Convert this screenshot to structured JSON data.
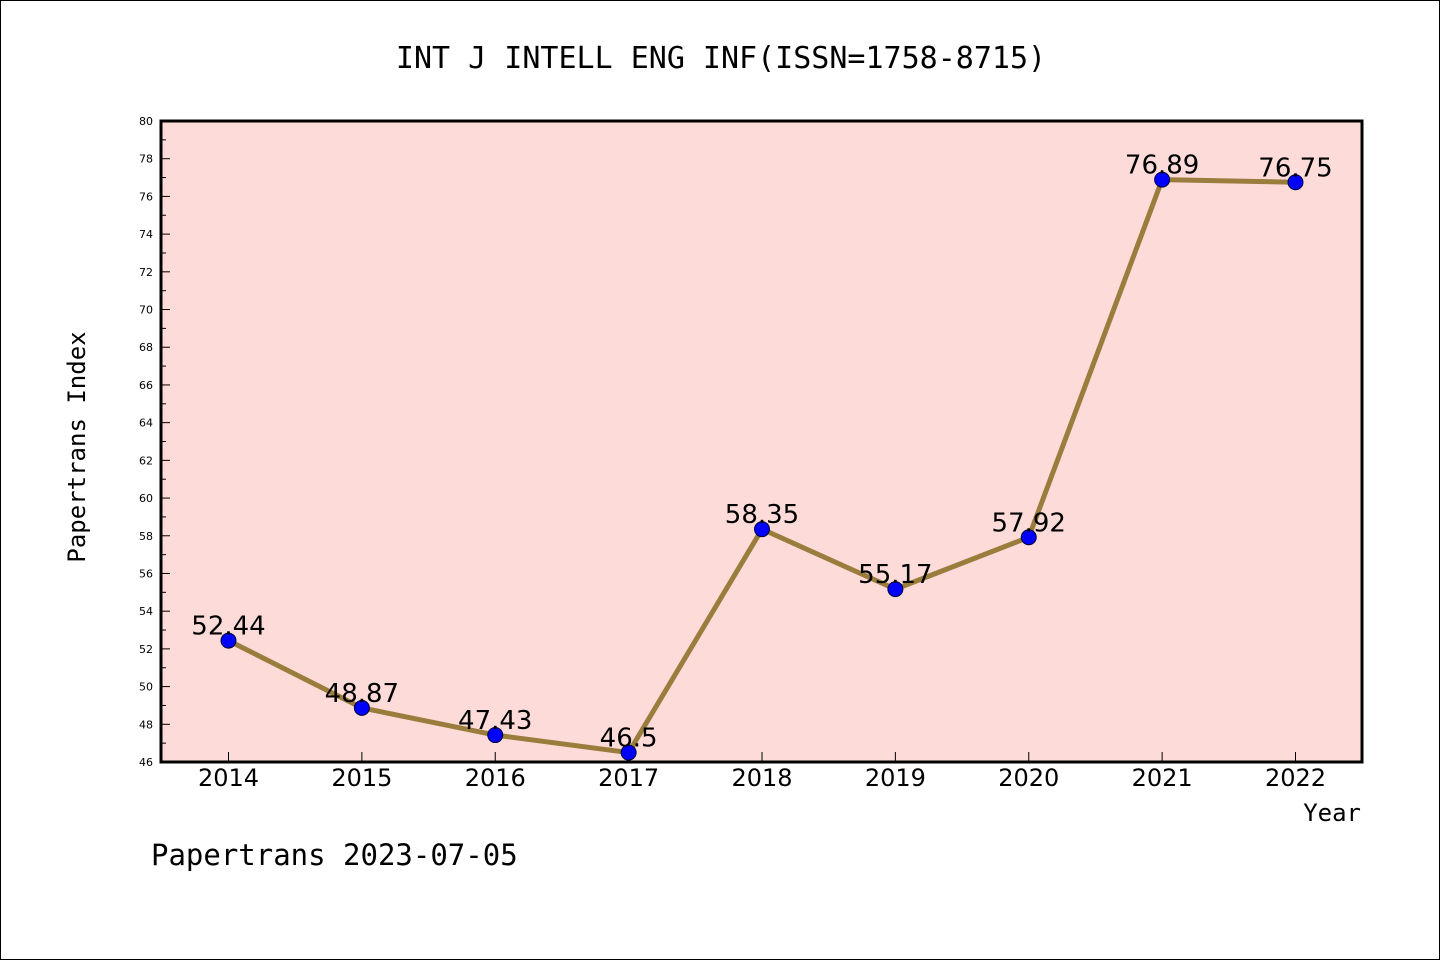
{
  "footer": "Papertrans 2023-07-05",
  "colors": {
    "plot_background": "#fddbd9",
    "line": "#9a7d3d",
    "marker": "#0000ff",
    "marker_edge": "#000033"
  },
  "chart_data": {
    "type": "line",
    "title": "INT J INTELL ENG INF(ISSN=1758-8715)",
    "xlabel": "Year",
    "ylabel": "Papertrans Index",
    "categories": [
      "2014",
      "2015",
      "2016",
      "2017",
      "2018",
      "2019",
      "2020",
      "2021",
      "2022"
    ],
    "series": [
      {
        "values": [
          52.44,
          48.87,
          47.43,
          46.5,
          58.35,
          55.17,
          57.92,
          76.89,
          76.75
        ],
        "labels": [
          "52.44",
          "48.87",
          "47.43",
          "46.5",
          "58.35",
          "55.17",
          "57.92",
          "76.89",
          "76.75"
        ]
      }
    ],
    "ylim": [
      46,
      80
    ],
    "yticks": [
      "46",
      "48",
      "50",
      "52",
      "54",
      "56",
      "58",
      "60",
      "62",
      "64",
      "66",
      "68",
      "70",
      "72",
      "74",
      "76",
      "78",
      "80"
    ],
    "grid": false,
    "legend": "none"
  }
}
